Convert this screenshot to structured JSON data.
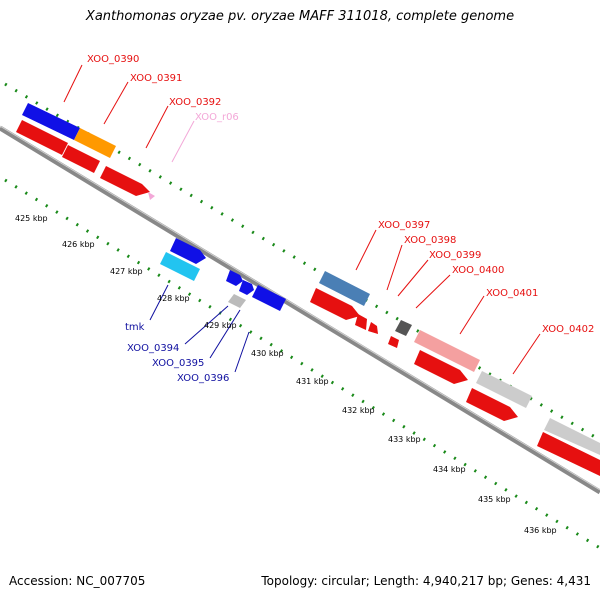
{
  "title": "Xanthomonas oryzae pv. oryzae MAFF 311018, complete genome",
  "accession": "Accession: NC_007705",
  "summary": "Topology: circular; Length: 4,940,217 bp; Genes: 4,431",
  "colors": {
    "forward_cds": "#1010e6",
    "reverse_cds": "#e61010",
    "trna": "#f3a8d8",
    "backbone": "#888888",
    "tick_dots": "#1a8a1a"
  },
  "kbp_ticks": [
    "425 kbp",
    "426 kbp",
    "427 kbp",
    "428 kbp",
    "429 kbp",
    "430 kbp",
    "431 kbp",
    "432 kbp",
    "433 kbp",
    "434 kbp",
    "435 kbp",
    "436 kbp"
  ],
  "labels_top": [
    {
      "text": "XOO_0390",
      "color": "#e61010"
    },
    {
      "text": "XOO_0391",
      "color": "#e61010"
    },
    {
      "text": "XOO_0392",
      "color": "#e61010"
    },
    {
      "text": "XOO_r06",
      "color": "#f3a8d8"
    },
    {
      "text": "XOO_0397",
      "color": "#e61010"
    },
    {
      "text": "XOO_0398",
      "color": "#e61010"
    },
    {
      "text": "XOO_0399",
      "color": "#e61010"
    },
    {
      "text": "XOO_0400",
      "color": "#e61010"
    },
    {
      "text": "XOO_0401",
      "color": "#e61010"
    },
    {
      "text": "XOO_0402",
      "color": "#e61010"
    }
  ],
  "labels_bottom": [
    {
      "text": "tmk",
      "color": "#1010a0"
    },
    {
      "text": "XOO_0394",
      "color": "#1010a0"
    },
    {
      "text": "XOO_0395",
      "color": "#1010a0"
    },
    {
      "text": "XOO_0396",
      "color": "#1010a0"
    }
  ]
}
